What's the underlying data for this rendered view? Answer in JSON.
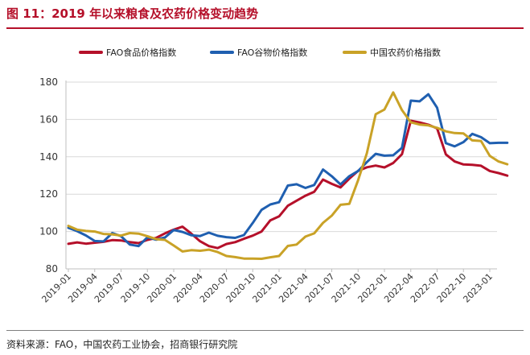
{
  "title": "图 11：2019 年以来粮食及农药价格变动趋势",
  "source": "资料来源：FAO，中国农药工业协会，招商银行研究院",
  "chart_data": {
    "type": "line",
    "x_ticks": [
      "2019-01",
      "2019-04",
      "2019-07",
      "2019-10",
      "2020-01",
      "2020-04",
      "2020-07",
      "2020-10",
      "2021-01",
      "2021-04",
      "2021-07",
      "2021-10",
      "2022-01",
      "2022-04",
      "2022-07",
      "2022-10",
      "2023-01"
    ],
    "x_start": "2019-01",
    "ylim": [
      80,
      180
    ],
    "yticks": [
      80,
      100,
      120,
      140,
      160,
      180
    ],
    "legend_position": "top",
    "series": [
      {
        "name": "FAO食品价格指数",
        "color": "#b5102a",
        "values": [
          93.4,
          94.2,
          93.5,
          94,
          94.5,
          95.4,
          95.2,
          94.3,
          93.8,
          95.5,
          96.6,
          99,
          101,
          102.6,
          98.9,
          94.8,
          92.2,
          91.1,
          93.3,
          94.3,
          96.1,
          97.8,
          100,
          106,
          108.1,
          113.8,
          116.5,
          119.2,
          121.3,
          127.8,
          125.5,
          123.6,
          128.3,
          132.5,
          134.4,
          135.3,
          134.3,
          136.7,
          141.4,
          159.3,
          158.4,
          157.2,
          155.2,
          141.3,
          137.5,
          135.9,
          135.7,
          135.2,
          132.4,
          131.3,
          129.9
        ]
      },
      {
        "name": "FAO谷物价格指数",
        "color": "#1f5fb0",
        "values": [
          102,
          100.2,
          97.9,
          94.9,
          94.7,
          99.2,
          97.5,
          93,
          92.2,
          96.9,
          95.6,
          96.8,
          100.8,
          99.8,
          98,
          97.6,
          99.4,
          97.7,
          97,
          96.6,
          98.1,
          104.6,
          111.6,
          114.5,
          115.7,
          124.6,
          125.3,
          123.3,
          124.9,
          133.2,
          129.6,
          125.2,
          129.6,
          132.4,
          137.2,
          141.6,
          140.6,
          140.8,
          144.8,
          170.1,
          169.7,
          173.5,
          166.3,
          147.3,
          145.6,
          147.9,
          152.3,
          150.5,
          147.3,
          147.5,
          147.5
        ]
      },
      {
        "name": "中国农药价格指数",
        "color": "#c9a227",
        "values": [
          103,
          101,
          100.3,
          100,
          98.7,
          98.5,
          97.8,
          99.2,
          98.9,
          97.5,
          95.9,
          95.5,
          92.5,
          89.3,
          90,
          89.7,
          90.3,
          89,
          86.9,
          86.3,
          85.5,
          85.5,
          85.4,
          86.2,
          86.9,
          92.3,
          93,
          97.3,
          99,
          104.6,
          108.5,
          114.3,
          114.8,
          127.5,
          142,
          162.8,
          165.3,
          174.5,
          165,
          158.5,
          157.3,
          156.8,
          155.5,
          153.6,
          152.7,
          152.5,
          148.8,
          148.5,
          140.5,
          137.5,
          136
        ]
      }
    ]
  }
}
